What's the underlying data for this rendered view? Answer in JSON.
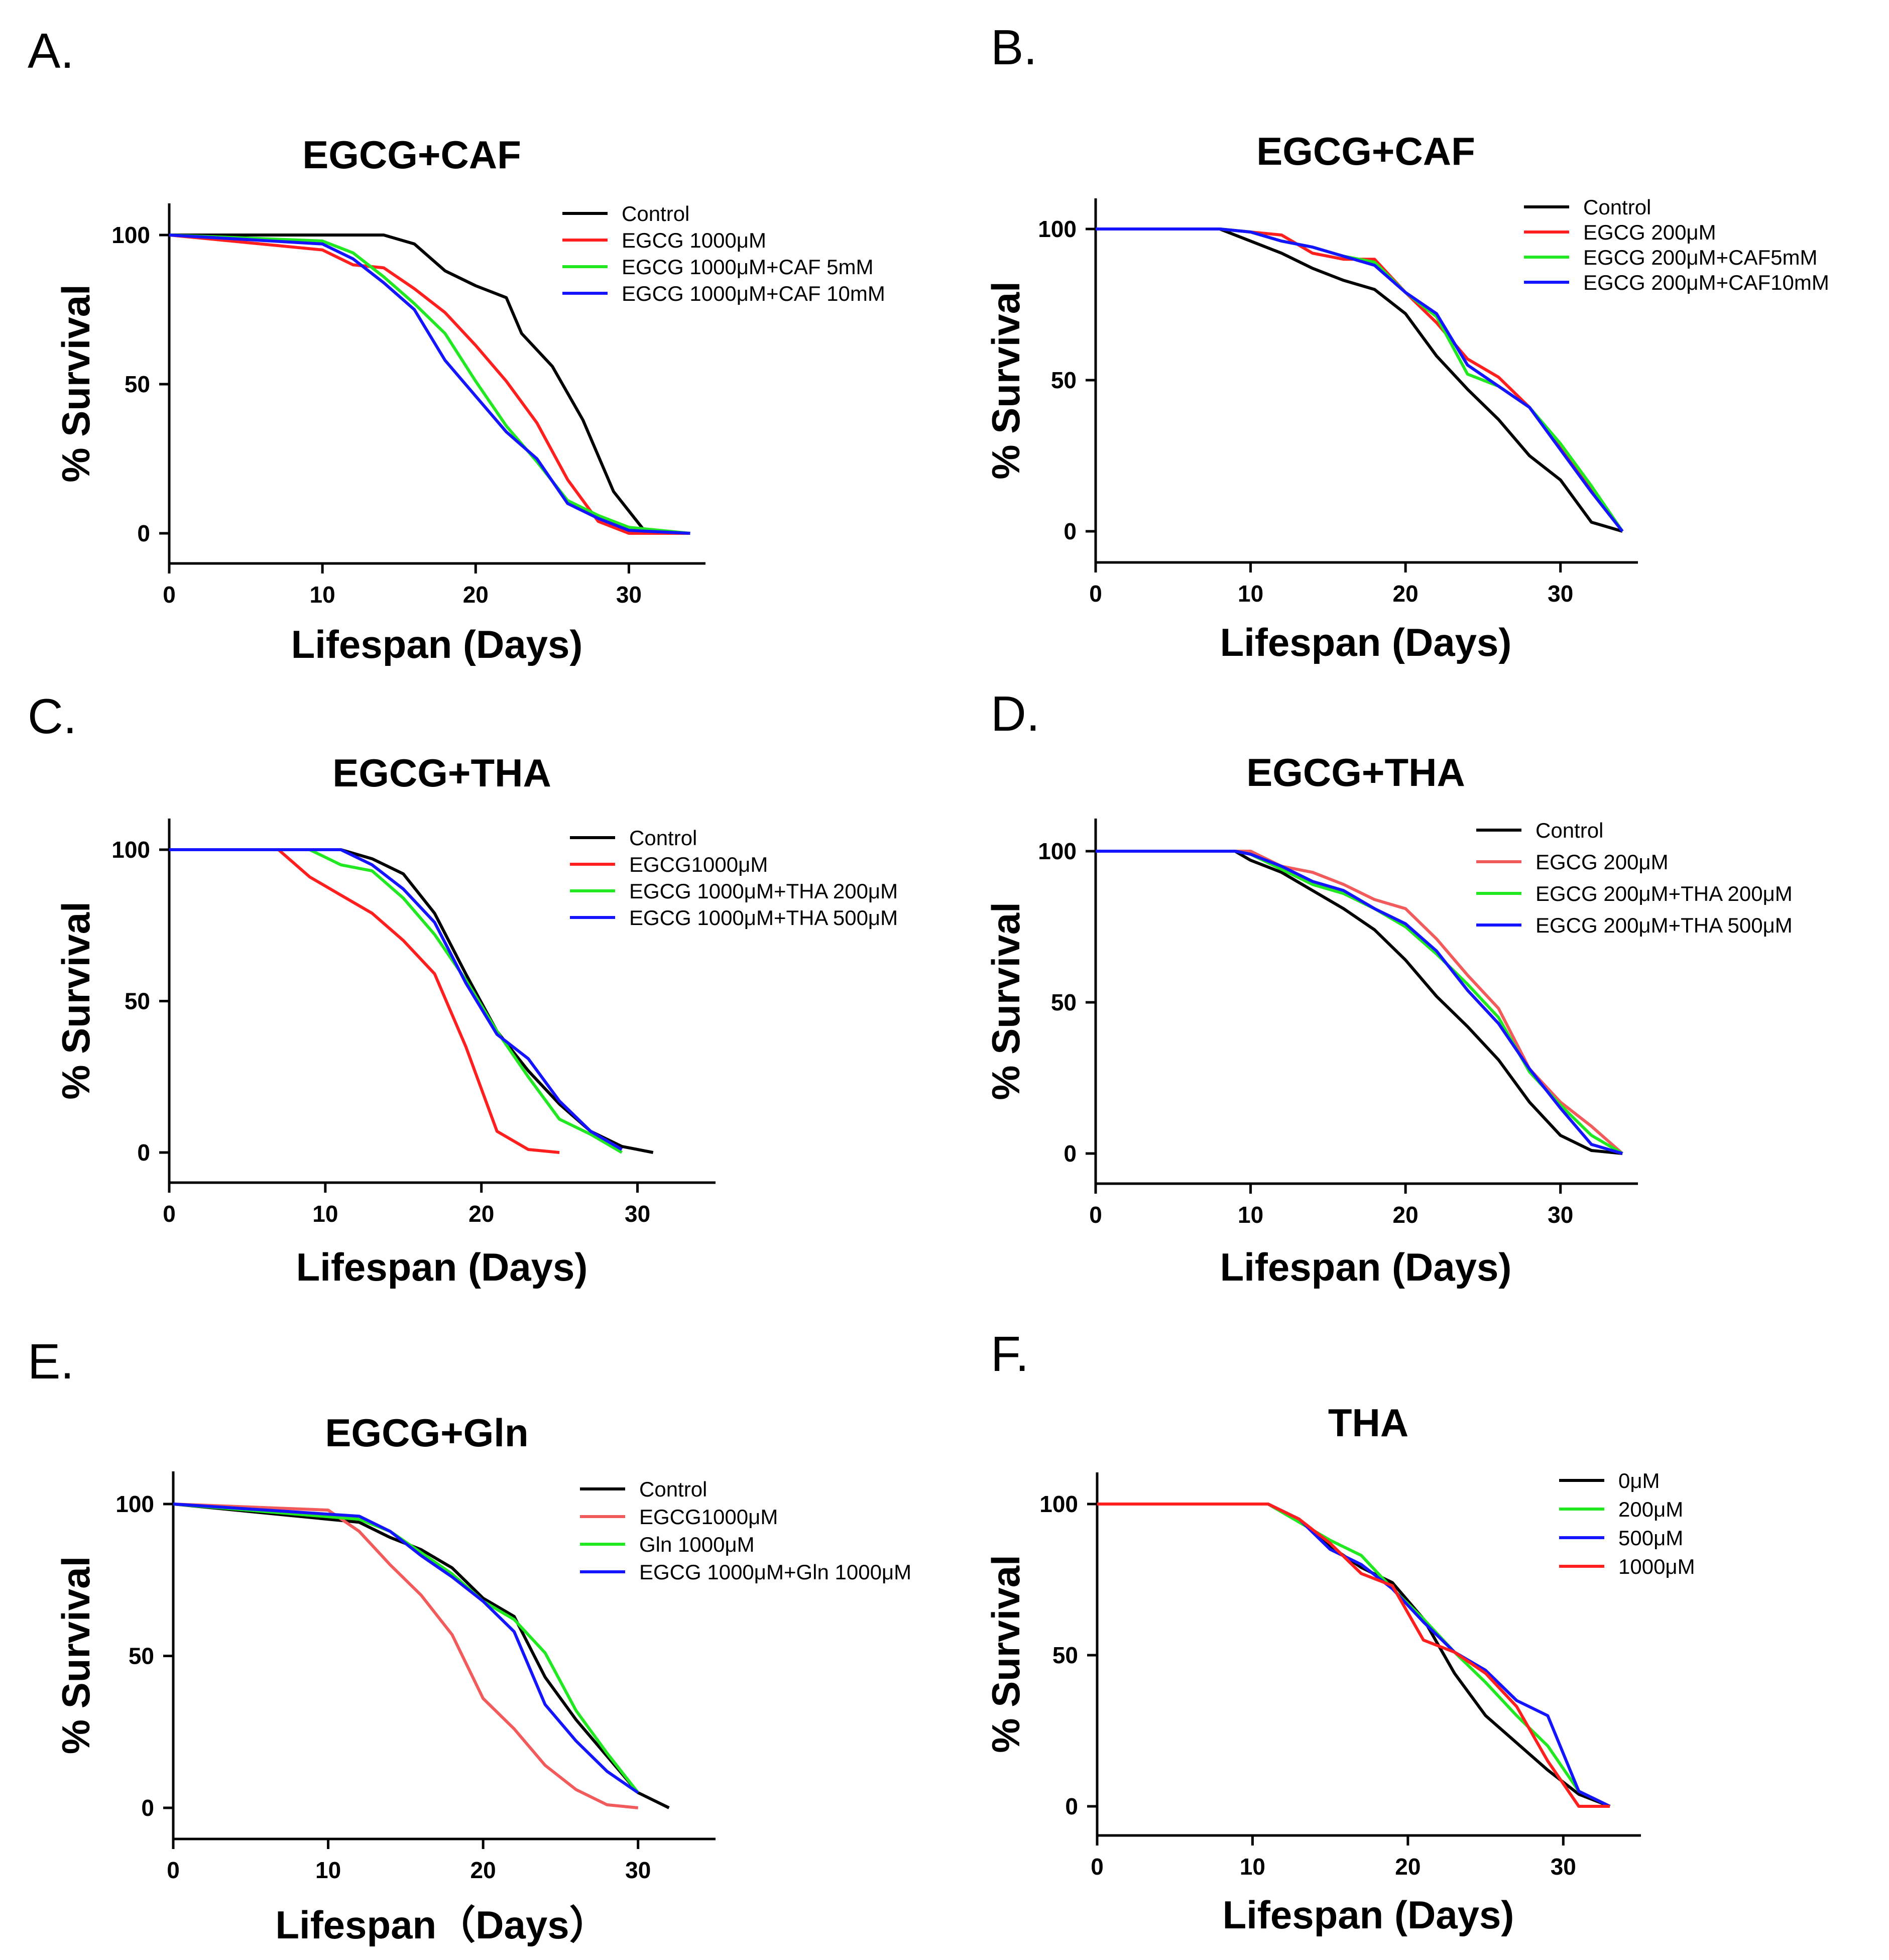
{
  "figure": {
    "colors": {
      "black": "#000000",
      "red": "#ff1f1f",
      "green": "#22e822",
      "blue": "#1414ff",
      "salmon": "#f25b5b"
    }
  },
  "chart_data": [
    {
      "panel": "A.",
      "type": "line",
      "title": "EGCG+CAF",
      "xlabel": "Lifespan (Days)",
      "ylabel": "% Survival",
      "xlim": [
        0,
        35
      ],
      "ylim": [
        -10,
        110
      ],
      "xticks": [
        0,
        10,
        20,
        30
      ],
      "yticks": [
        0,
        50,
        100
      ],
      "legend": "top-right",
      "series": [
        {
          "name": "Control",
          "color": "#000000",
          "x": [
            0,
            14,
            16,
            18,
            20,
            22,
            23,
            25,
            27,
            29,
            31,
            34
          ],
          "y": [
            100,
            100,
            97,
            88,
            83,
            79,
            67,
            56,
            38,
            14,
            1,
            0
          ]
        },
        {
          "name": "EGCG 1000μM",
          "color": "#ff1f1f",
          "x": [
            0,
            10,
            12,
            14,
            16,
            18,
            20,
            22,
            24,
            26,
            28,
            30,
            34
          ],
          "y": [
            100,
            95,
            90,
            89,
            82,
            74,
            63,
            51,
            37,
            18,
            4,
            0,
            0
          ]
        },
        {
          "name": "EGCG 1000μM+CAF 5mM",
          "color": "#22e822",
          "x": [
            0,
            10,
            12,
            14,
            16,
            18,
            20,
            22,
            24,
            26,
            28,
            30,
            34
          ],
          "y": [
            100,
            98,
            94,
            86,
            77,
            67,
            51,
            36,
            24,
            11,
            6,
            2,
            0
          ]
        },
        {
          "name": "EGCG 1000μM+CAF 10mM",
          "color": "#1414ff",
          "x": [
            0,
            10,
            12,
            14,
            16,
            18,
            20,
            22,
            24,
            26,
            28,
            30,
            34
          ],
          "y": [
            100,
            97,
            92,
            84,
            75,
            58,
            46,
            34,
            25,
            10,
            5,
            1,
            0
          ]
        }
      ]
    },
    {
      "panel": "B.",
      "type": "line",
      "title": "EGCG+CAF",
      "xlabel": "Lifespan (Days)",
      "ylabel": "% Survival",
      "xlim": [
        0,
        35
      ],
      "ylim": [
        -10,
        110
      ],
      "xticks": [
        0,
        10,
        20,
        30
      ],
      "yticks": [
        0,
        50,
        100
      ],
      "legend": "top-right",
      "series": [
        {
          "name": "Control",
          "color": "#000000",
          "x": [
            0,
            8,
            10,
            12,
            14,
            16,
            18,
            20,
            22,
            24,
            26,
            28,
            30,
            32,
            34
          ],
          "y": [
            100,
            100,
            96,
            92,
            87,
            83,
            80,
            72,
            58,
            47,
            37,
            25,
            17,
            3,
            0
          ]
        },
        {
          "name": "EGCG 200μM",
          "color": "#ff1f1f",
          "x": [
            0,
            8,
            10,
            12,
            14,
            16,
            18,
            20,
            22,
            24,
            26,
            28,
            30,
            32,
            34
          ],
          "y": [
            100,
            100,
            99,
            98,
            92,
            90,
            90,
            79,
            69,
            57,
            51,
            41,
            28,
            14,
            0
          ]
        },
        {
          "name": "EGCG 200μM+CAF5mM",
          "color": "#22e822",
          "x": [
            0,
            8,
            10,
            12,
            14,
            16,
            18,
            20,
            22,
            24,
            26,
            28,
            30,
            32,
            34
          ],
          "y": [
            100,
            100,
            99,
            96,
            94,
            91,
            89,
            79,
            71,
            52,
            48,
            41,
            29,
            15,
            0
          ]
        },
        {
          "name": "EGCG 200μM+CAF10mM",
          "color": "#1414ff",
          "x": [
            0,
            8,
            10,
            12,
            14,
            16,
            18,
            20,
            22,
            24,
            26,
            28,
            30,
            32,
            34
          ],
          "y": [
            100,
            100,
            99,
            96,
            94,
            91,
            88,
            79,
            72,
            55,
            48,
            41,
            27,
            13,
            0
          ]
        }
      ]
    },
    {
      "panel": "C.",
      "type": "line",
      "title": "EGCG+THA",
      "xlabel": "Lifespan (Days)",
      "ylabel": "% Survival",
      "xlim": [
        0,
        35
      ],
      "ylim": [
        -10,
        110
      ],
      "xticks": [
        0,
        10,
        20,
        30
      ],
      "yticks": [
        0,
        50,
        100
      ],
      "legend": "top-right",
      "series": [
        {
          "name": "Control",
          "color": "#000000",
          "x": [
            0,
            11,
            13,
            15,
            17,
            19,
            21,
            23,
            25,
            27,
            29,
            31
          ],
          "y": [
            100,
            100,
            97,
            92,
            79,
            59,
            40,
            27,
            16,
            7,
            2,
            0
          ]
        },
        {
          "name": "EGCG1000μM",
          "color": "#ff1f1f",
          "x": [
            0,
            7,
            9,
            11,
            13,
            15,
            17,
            19,
            21,
            23,
            25
          ],
          "y": [
            100,
            100,
            91,
            85,
            79,
            70,
            59,
            35,
            7,
            1,
            0
          ]
        },
        {
          "name": "EGCG 1000μM+THA 200μM",
          "color": "#22e822",
          "x": [
            0,
            9,
            11,
            13,
            15,
            17,
            19,
            21,
            23,
            25,
            27,
            29
          ],
          "y": [
            100,
            100,
            95,
            93,
            84,
            72,
            57,
            40,
            25,
            11,
            6,
            0
          ]
        },
        {
          "name": "EGCG 1000μM+THA 500μM",
          "color": "#1414ff",
          "x": [
            0,
            11,
            13,
            15,
            17,
            19,
            21,
            23,
            25,
            27,
            29
          ],
          "y": [
            100,
            100,
            95,
            87,
            76,
            56,
            39,
            31,
            17,
            7,
            1
          ]
        }
      ]
    },
    {
      "panel": "D.",
      "type": "line",
      "title": "EGCG+THA",
      "xlabel": "Lifespan (Days)",
      "ylabel": "% Survival",
      "xlim": [
        0,
        35
      ],
      "ylim": [
        -10,
        110
      ],
      "xticks": [
        0,
        10,
        20,
        30
      ],
      "yticks": [
        0,
        50,
        100
      ],
      "legend": "top-right",
      "series": [
        {
          "name": "Control",
          "color": "#000000",
          "x": [
            0,
            9,
            10,
            12,
            14,
            16,
            18,
            20,
            22,
            24,
            26,
            28,
            30,
            32,
            34
          ],
          "y": [
            100,
            100,
            97,
            93,
            87,
            81,
            74,
            64,
            52,
            42,
            31,
            17,
            6,
            1,
            0
          ]
        },
        {
          "name": "EGCG 200μM",
          "color": "#f25b5b",
          "x": [
            0,
            9,
            10,
            12,
            14,
            16,
            18,
            20,
            22,
            24,
            26,
            28,
            30,
            32,
            34
          ],
          "y": [
            100,
            100,
            100,
            95,
            93,
            89,
            84,
            81,
            71,
            59,
            48,
            28,
            17,
            9,
            0
          ]
        },
        {
          "name": "EGCG 200μM+THA 200μM",
          "color": "#22e822",
          "x": [
            0,
            9,
            10,
            12,
            14,
            16,
            18,
            20,
            22,
            24,
            26,
            28,
            30,
            32,
            34
          ],
          "y": [
            100,
            100,
            99,
            94,
            89,
            86,
            81,
            75,
            66,
            56,
            45,
            27,
            16,
            6,
            0
          ]
        },
        {
          "name": "EGCG 200μM+THA 500μM",
          "color": "#1414ff",
          "x": [
            0,
            9,
            10,
            12,
            14,
            16,
            18,
            20,
            22,
            24,
            26,
            28,
            30,
            32,
            34
          ],
          "y": [
            100,
            100,
            99,
            95,
            90,
            87,
            81,
            76,
            67,
            54,
            43,
            28,
            15,
            3,
            0
          ]
        }
      ]
    },
    {
      "panel": "E.",
      "type": "line",
      "title": "EGCG+Gln",
      "xlabel": "Lifespan（Days）",
      "ylabel": "% Survival",
      "xlim": [
        0,
        35
      ],
      "ylim": [
        -10,
        110
      ],
      "xticks": [
        0,
        10,
        20,
        30
      ],
      "yticks": [
        0,
        50,
        100
      ],
      "legend": "top-right",
      "series": [
        {
          "name": "Control",
          "color": "#000000",
          "x": [
            0,
            12,
            14,
            16,
            18,
            20,
            22,
            24,
            26,
            28,
            30,
            32
          ],
          "y": [
            100,
            94,
            89,
            85,
            79,
            69,
            63,
            43,
            29,
            17,
            5,
            0
          ]
        },
        {
          "name": "EGCG1000μM",
          "color": "#f25b5b",
          "x": [
            0,
            10,
            12,
            14,
            16,
            18,
            20,
            22,
            24,
            26,
            28,
            30
          ],
          "y": [
            100,
            98,
            91,
            80,
            70,
            57,
            36,
            26,
            14,
            6,
            1,
            0
          ]
        },
        {
          "name": "Gln 1000μM",
          "color": "#22e822",
          "x": [
            0,
            12,
            14,
            16,
            18,
            20,
            22,
            24,
            26,
            28,
            30
          ],
          "y": [
            100,
            95,
            91,
            84,
            77,
            68,
            62,
            51,
            32,
            18,
            5
          ]
        },
        {
          "name": "EGCG 1000μM+Gln 1000μM",
          "color": "#1414ff",
          "x": [
            0,
            12,
            14,
            16,
            18,
            20,
            22,
            24,
            26,
            28,
            30
          ],
          "y": [
            100,
            96,
            91,
            83,
            76,
            68,
            58,
            34,
            22,
            12,
            5
          ]
        }
      ]
    },
    {
      "panel": "F.",
      "type": "line",
      "title": "THA",
      "xlabel": "Lifespan (Days)",
      "ylabel": "% Survival",
      "xlim": [
        0,
        35
      ],
      "ylim": [
        -10,
        110
      ],
      "xticks": [
        0,
        10,
        20,
        30
      ],
      "yticks": [
        0,
        50,
        100
      ],
      "legend": "top-right",
      "series": [
        {
          "name": "0μM",
          "color": "#000000",
          "x": [
            0,
            11,
            13,
            15,
            17,
            19,
            21,
            23,
            25,
            27,
            29,
            31,
            33
          ],
          "y": [
            100,
            100,
            95,
            86,
            79,
            74,
            62,
            44,
            30,
            21,
            12,
            4,
            0
          ]
        },
        {
          "name": "200μM",
          "color": "#22e822",
          "x": [
            0,
            11,
            13,
            15,
            17,
            19,
            21,
            23,
            25,
            27,
            29,
            31,
            33
          ],
          "y": [
            100,
            100,
            94,
            88,
            83,
            72,
            62,
            51,
            41,
            30,
            20,
            5,
            0
          ]
        },
        {
          "name": "500μM",
          "color": "#1414ff",
          "x": [
            0,
            11,
            13,
            15,
            17,
            19,
            21,
            23,
            25,
            27,
            29,
            31,
            33
          ],
          "y": [
            100,
            100,
            95,
            85,
            80,
            72,
            61,
            51,
            45,
            35,
            30,
            5,
            0
          ]
        },
        {
          "name": "1000μM",
          "color": "#ff1f1f",
          "x": [
            0,
            11,
            13,
            15,
            17,
            19,
            21,
            23,
            25,
            27,
            29,
            31,
            33
          ],
          "y": [
            100,
            100,
            95,
            87,
            77,
            73,
            55,
            51,
            44,
            33,
            15,
            0,
            0
          ]
        }
      ]
    }
  ]
}
